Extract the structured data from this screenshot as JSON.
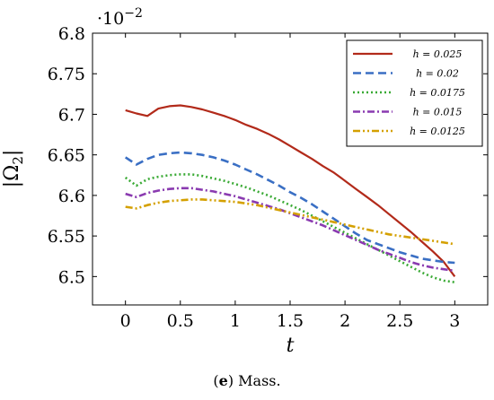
{
  "caption": {
    "label": "e",
    "text": "Mass."
  },
  "chart_data": {
    "type": "line",
    "xlabel": "t",
    "ylabel": "|Ω2|",
    "y_multiplier_label": "·10",
    "y_multiplier_exponent": "−2",
    "xlim": [
      -0.3,
      3.3
    ],
    "ylim": [
      6.465,
      6.8
    ],
    "xticks": [
      "0",
      "0.5",
      "1",
      "1.5",
      "2",
      "2.5",
      "3"
    ],
    "yticks": [
      "6.5",
      "6.55",
      "6.6",
      "6.65",
      "6.7",
      "6.75",
      "6.8"
    ],
    "grid": false,
    "legend_position": "top-right",
    "series": [
      {
        "name": "h = 0.025",
        "color": "#b22a1a",
        "style": "solid",
        "x": [
          0,
          0.1,
          0.2,
          0.3,
          0.4,
          0.5,
          0.6,
          0.7,
          0.8,
          0.9,
          1.0,
          1.1,
          1.2,
          1.3,
          1.4,
          1.5,
          1.6,
          1.7,
          1.8,
          1.9,
          2.0,
          2.1,
          2.2,
          2.3,
          2.4,
          2.5,
          2.6,
          2.7,
          2.8,
          2.9,
          3.0
        ],
        "y": [
          6.705,
          6.701,
          6.698,
          6.707,
          6.71,
          6.711,
          6.709,
          6.706,
          6.702,
          6.698,
          6.693,
          6.687,
          6.682,
          6.676,
          6.669,
          6.661,
          6.653,
          6.645,
          6.636,
          6.628,
          6.618,
          6.608,
          6.598,
          6.588,
          6.577,
          6.566,
          6.555,
          6.543,
          6.531,
          6.518,
          6.5
        ]
      },
      {
        "name": "h = 0.02",
        "color": "#3a6fc4",
        "style": "dashed",
        "x": [
          0,
          0.1,
          0.2,
          0.3,
          0.4,
          0.5,
          0.6,
          0.7,
          0.8,
          0.9,
          1.0,
          1.1,
          1.2,
          1.3,
          1.4,
          1.5,
          1.6,
          1.7,
          1.8,
          1.9,
          2.0,
          2.1,
          2.2,
          2.3,
          2.4,
          2.5,
          2.6,
          2.7,
          2.8,
          2.9,
          3.0
        ],
        "y": [
          6.647,
          6.638,
          6.645,
          6.65,
          6.652,
          6.653,
          6.652,
          6.65,
          6.647,
          6.643,
          6.638,
          6.632,
          6.626,
          6.619,
          6.612,
          6.604,
          6.597,
          6.589,
          6.58,
          6.571,
          6.562,
          6.553,
          6.545,
          6.54,
          6.535,
          6.53,
          6.526,
          6.522,
          6.52,
          6.518,
          6.517
        ]
      },
      {
        "name": "h = 0.0175",
        "color": "#3aaa35",
        "style": "dotted",
        "x": [
          0,
          0.1,
          0.2,
          0.3,
          0.4,
          0.5,
          0.6,
          0.7,
          0.8,
          0.9,
          1.0,
          1.1,
          1.2,
          1.3,
          1.4,
          1.5,
          1.6,
          1.7,
          1.8,
          1.9,
          2.0,
          2.1,
          2.2,
          2.3,
          2.4,
          2.5,
          2.6,
          2.7,
          2.8,
          2.9,
          3.0
        ],
        "y": [
          6.622,
          6.612,
          6.62,
          6.623,
          6.625,
          6.626,
          6.626,
          6.624,
          6.621,
          6.618,
          6.614,
          6.61,
          6.605,
          6.6,
          6.594,
          6.588,
          6.582,
          6.575,
          6.568,
          6.561,
          6.554,
          6.547,
          6.54,
          6.533,
          6.526,
          6.519,
          6.512,
          6.505,
          6.499,
          6.495,
          6.493
        ]
      },
      {
        "name": "h = 0.015",
        "color": "#8a3ab0",
        "style": "dashdot",
        "x": [
          0,
          0.1,
          0.2,
          0.3,
          0.4,
          0.5,
          0.6,
          0.7,
          0.8,
          0.9,
          1.0,
          1.1,
          1.2,
          1.3,
          1.4,
          1.5,
          1.6,
          1.7,
          1.8,
          1.9,
          2.0,
          2.1,
          2.2,
          2.3,
          2.4,
          2.5,
          2.6,
          2.7,
          2.8,
          2.9,
          3.0
        ],
        "y": [
          6.602,
          6.598,
          6.603,
          6.606,
          6.608,
          6.609,
          6.609,
          6.607,
          6.605,
          6.602,
          6.599,
          6.595,
          6.591,
          6.587,
          6.583,
          6.578,
          6.573,
          6.568,
          6.563,
          6.557,
          6.551,
          6.545,
          6.539,
          6.533,
          6.528,
          6.523,
          6.518,
          6.514,
          6.511,
          6.509,
          6.507
        ]
      },
      {
        "name": "h = 0.0125",
        "color": "#d4a000",
        "style": "dashdotdot",
        "x": [
          0,
          0.1,
          0.2,
          0.3,
          0.4,
          0.5,
          0.6,
          0.7,
          0.8,
          0.9,
          1.0,
          1.1,
          1.2,
          1.3,
          1.4,
          1.5,
          1.6,
          1.7,
          1.8,
          1.9,
          2.0,
          2.1,
          2.2,
          2.3,
          2.4,
          2.5,
          2.6,
          2.7,
          2.8,
          2.9,
          3.0
        ],
        "y": [
          6.586,
          6.584,
          6.588,
          6.591,
          6.593,
          6.594,
          6.595,
          6.595,
          6.594,
          6.593,
          6.592,
          6.59,
          6.588,
          6.585,
          6.582,
          6.579,
          6.576,
          6.573,
          6.57,
          6.567,
          6.564,
          6.561,
          6.558,
          6.555,
          6.552,
          6.55,
          6.548,
          6.546,
          6.544,
          6.542,
          6.54
        ]
      }
    ]
  }
}
